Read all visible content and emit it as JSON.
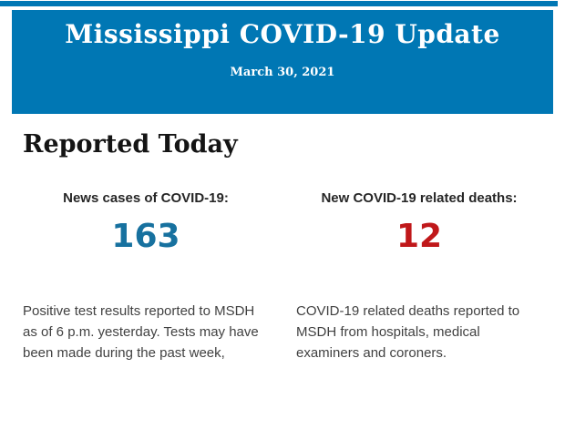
{
  "banner": {
    "title": "Mississippi COVID-19 Update",
    "date": "March 30, 2021",
    "background_color": "#0077b4",
    "text_color": "#ffffff"
  },
  "section": {
    "heading": "Reported Today"
  },
  "stats": [
    {
      "label": "News cases of COVID-19:",
      "value": "163",
      "value_color": "#17719f",
      "description": "Positive test results reported to MSDH as of 6 p.m. yesterday. Tests may have been made during the past week,"
    },
    {
      "label": "New COVID-19 related deaths:",
      "value": "12",
      "value_color": "#c0181a",
      "description": "COVID-19 related deaths reported to MSDH from hospitals, medical examiners and coroners."
    }
  ]
}
